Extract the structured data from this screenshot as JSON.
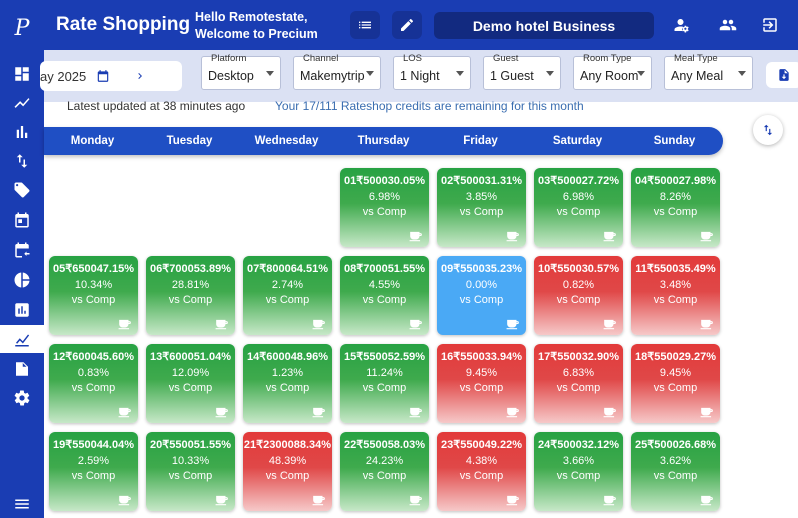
{
  "header": {
    "title": "Rate Shopping",
    "greeting_line1": "Hello Remotestate,",
    "greeting_line2": "Welcome to Precium",
    "hotel": "Demo hotel Business"
  },
  "filters": {
    "date": "ay 2025",
    "platform": {
      "label": "Platform",
      "value": "Desktop"
    },
    "channel": {
      "label": "Channel",
      "value": "Makemytrip"
    },
    "los": {
      "label": "LOS",
      "value": "1 Night"
    },
    "guest": {
      "label": "Guest",
      "value": "1 Guest"
    },
    "room_type": {
      "label": "Room Type",
      "value": "Any Room"
    },
    "meal_type": {
      "label": "Meal Type",
      "value": "Any Meal"
    }
  },
  "info": {
    "updated": "Latest updated at 38 minutes ago",
    "credits": "Your 17/111 Rateshop credits are remaining for this month"
  },
  "days": [
    "Monday",
    "Tuesday",
    "Wednesday",
    "Thursday",
    "Friday",
    "Saturday",
    "Sunday"
  ],
  "vs_label": "vs Comp",
  "cells": [
    {
      "day": "01",
      "price": "₹5000",
      "pct": "30.05%",
      "diff": "6.98%",
      "status": "green"
    },
    {
      "day": "02",
      "price": "₹5000",
      "pct": "31.31%",
      "diff": "3.85%",
      "status": "green"
    },
    {
      "day": "03",
      "price": "₹5000",
      "pct": "27.72%",
      "diff": "6.98%",
      "status": "green"
    },
    {
      "day": "04",
      "price": "₹5000",
      "pct": "27.98%",
      "diff": "8.26%",
      "status": "green"
    },
    {
      "day": "05",
      "price": "₹6500",
      "pct": "47.15%",
      "diff": "10.34%",
      "status": "green"
    },
    {
      "day": "06",
      "price": "₹7000",
      "pct": "53.89%",
      "diff": "28.81%",
      "status": "green"
    },
    {
      "day": "07",
      "price": "₹8000",
      "pct": "64.51%",
      "diff": "2.74%",
      "status": "green"
    },
    {
      "day": "08",
      "price": "₹7000",
      "pct": "51.55%",
      "diff": "4.55%",
      "status": "green"
    },
    {
      "day": "09",
      "price": "₹5500",
      "pct": "35.23%",
      "diff": "0.00%",
      "status": "blue"
    },
    {
      "day": "10",
      "price": "₹5500",
      "pct": "30.57%",
      "diff": "0.82%",
      "status": "red"
    },
    {
      "day": "11",
      "price": "₹5500",
      "pct": "35.49%",
      "diff": "3.48%",
      "status": "red"
    },
    {
      "day": "12",
      "price": "₹6000",
      "pct": "45.60%",
      "diff": "0.83%",
      "status": "green"
    },
    {
      "day": "13",
      "price": "₹6000",
      "pct": "51.04%",
      "diff": "12.09%",
      "status": "green"
    },
    {
      "day": "14",
      "price": "₹6000",
      "pct": "48.96%",
      "diff": "1.23%",
      "status": "green"
    },
    {
      "day": "15",
      "price": "₹5500",
      "pct": "52.59%",
      "diff": "11.24%",
      "status": "green"
    },
    {
      "day": "16",
      "price": "₹5500",
      "pct": "33.94%",
      "diff": "9.45%",
      "status": "red"
    },
    {
      "day": "17",
      "price": "₹5500",
      "pct": "32.90%",
      "diff": "6.83%",
      "status": "red"
    },
    {
      "day": "18",
      "price": "₹5500",
      "pct": "29.27%",
      "diff": "9.45%",
      "status": "red"
    },
    {
      "day": "19",
      "price": "₹5500",
      "pct": "44.04%",
      "diff": "2.59%",
      "status": "green"
    },
    {
      "day": "20",
      "price": "₹5500",
      "pct": "51.55%",
      "diff": "10.33%",
      "status": "green"
    },
    {
      "day": "21",
      "price": "₹23000",
      "pct": "88.34%",
      "diff": "48.39%",
      "status": "red"
    },
    {
      "day": "22",
      "price": "₹5500",
      "pct": "58.03%",
      "diff": "24.23%",
      "status": "green"
    },
    {
      "day": "23",
      "price": "₹5500",
      "pct": "49.22%",
      "diff": "4.38%",
      "status": "red"
    },
    {
      "day": "24",
      "price": "₹5000",
      "pct": "32.12%",
      "diff": "3.66%",
      "status": "green"
    },
    {
      "day": "25",
      "price": "₹5000",
      "pct": "26.68%",
      "diff": "3.62%",
      "status": "green"
    }
  ],
  "colors": {
    "primary": "#1a3db3",
    "green": "#27a243",
    "red": "#e23a3a",
    "blue": "#4aa9f5"
  }
}
